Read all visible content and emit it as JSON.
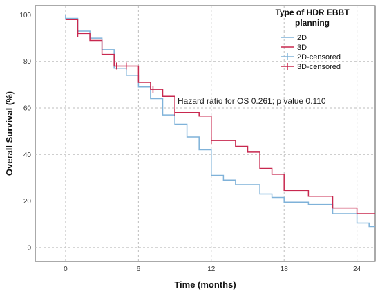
{
  "chart_data": {
    "type": "line",
    "subtype": "kaplan-meier-step",
    "xlabel": "Time (months)",
    "ylabel": "Overall Survival (%)",
    "xlim": [
      -2.5,
      25.5
    ],
    "ylim": [
      -6,
      104
    ],
    "xticks": [
      "0",
      "6",
      "12",
      "18",
      "24"
    ],
    "yticks": [
      "0",
      "20",
      "40",
      "60",
      "80",
      "100"
    ],
    "grid": true,
    "legend": {
      "title_line1": "Type of HDR EBBT",
      "title_line2": "planning",
      "position": "top-right",
      "entries": [
        "2D",
        "3D",
        "2D-censored",
        "3D-censored"
      ]
    },
    "annotation": "Hazard ratio for OS 0.261; p value 0.110",
    "colors": {
      "2D": "#7fb2d9",
      "3D": "#c8284f"
    },
    "series": [
      {
        "name": "2D",
        "points": [
          [
            0,
            100
          ],
          [
            0,
            98.5
          ],
          [
            1,
            98.5
          ],
          [
            1,
            93
          ],
          [
            2,
            93
          ],
          [
            2,
            90
          ],
          [
            3,
            90
          ],
          [
            3,
            85
          ],
          [
            4,
            85
          ],
          [
            4,
            77
          ],
          [
            5,
            77
          ],
          [
            5,
            74
          ],
          [
            6,
            74
          ],
          [
            6,
            69
          ],
          [
            7,
            69
          ],
          [
            7,
            64
          ],
          [
            8,
            64
          ],
          [
            8,
            57
          ],
          [
            9,
            57
          ],
          [
            9,
            53
          ],
          [
            10,
            53
          ],
          [
            10,
            47.5
          ],
          [
            11,
            47.5
          ],
          [
            11,
            42
          ],
          [
            12,
            42
          ],
          [
            12,
            31
          ],
          [
            13,
            31
          ],
          [
            13,
            29
          ],
          [
            14,
            29
          ],
          [
            14,
            27
          ],
          [
            16,
            27
          ],
          [
            16,
            23
          ],
          [
            17,
            23
          ],
          [
            17,
            21.5
          ],
          [
            18,
            21.5
          ],
          [
            18,
            19.5
          ],
          [
            20,
            19.5
          ],
          [
            20,
            18.5
          ],
          [
            22,
            18.5
          ],
          [
            22,
            14.5
          ],
          [
            24,
            14.5
          ],
          [
            24,
            10.5
          ],
          [
            25,
            10.5
          ],
          [
            25,
            9
          ],
          [
            25.5,
            9
          ]
        ],
        "censored": []
      },
      {
        "name": "3D",
        "points": [
          [
            0,
            98
          ],
          [
            1,
            98
          ],
          [
            1,
            92
          ],
          [
            2,
            92
          ],
          [
            2,
            89
          ],
          [
            3,
            89
          ],
          [
            3,
            83
          ],
          [
            4,
            83
          ],
          [
            4,
            78
          ],
          [
            5,
            78
          ],
          [
            6,
            78
          ],
          [
            6,
            71
          ],
          [
            7,
            71
          ],
          [
            7,
            68
          ],
          [
            8,
            68
          ],
          [
            8,
            65
          ],
          [
            9,
            65
          ],
          [
            9,
            58
          ],
          [
            11,
            58
          ],
          [
            11,
            56.5
          ],
          [
            12,
            56.5
          ],
          [
            12,
            46
          ],
          [
            14,
            46
          ],
          [
            14,
            43.5
          ],
          [
            15,
            43.5
          ],
          [
            15,
            41
          ],
          [
            16,
            41
          ],
          [
            16,
            34
          ],
          [
            17,
            34
          ],
          [
            17,
            31.5
          ],
          [
            18,
            31.5
          ],
          [
            18,
            24.5
          ],
          [
            20,
            24.5
          ],
          [
            20,
            22
          ],
          [
            22,
            22
          ],
          [
            22,
            17
          ],
          [
            24,
            17
          ],
          [
            24,
            14.5
          ],
          [
            25.5,
            14.5
          ]
        ],
        "censored": [
          [
            1,
            92
          ],
          [
            4.2,
            78
          ],
          [
            5,
            78
          ],
          [
            7.2,
            68
          ],
          [
            9,
            58
          ],
          [
            12,
            46
          ]
        ]
      }
    ]
  }
}
